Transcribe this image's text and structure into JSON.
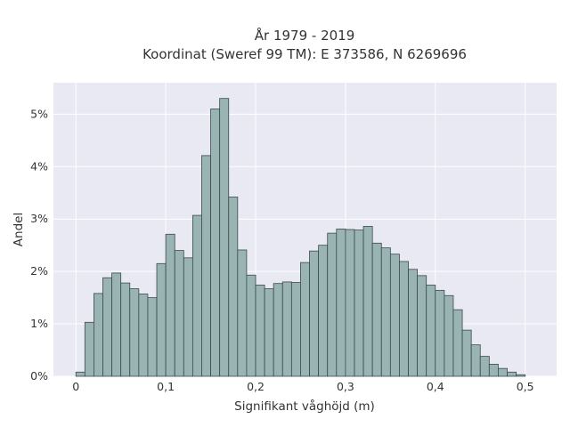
{
  "chart_data": {
    "type": "bar",
    "title_line1": "År 1979 - 2019",
    "title_line2": "Koordinat (Sweref 99 TM): E 373586, N 6269696",
    "xlabel": "Signifikant våghöjd (m)",
    "ylabel": "Andel",
    "bin_width": 0.01,
    "bin_start": 0.0,
    "xlim": [
      -0.025,
      0.535
    ],
    "ylim": [
      0,
      5.6
    ],
    "grid": true,
    "colors": {
      "plot_bg": "#e8e9f2",
      "bar_fill": "#9ab4b4",
      "bar_stroke": "#3a4a4a"
    },
    "x_ticks": [
      {
        "value": 0,
        "label": "0"
      },
      {
        "value": 0.1,
        "label": "0,1"
      },
      {
        "value": 0.2,
        "label": "0,2"
      },
      {
        "value": 0.3,
        "label": "0,3"
      },
      {
        "value": 0.4,
        "label": "0,4"
      },
      {
        "value": 0.5,
        "label": "0,5"
      }
    ],
    "y_ticks": [
      {
        "value": 0,
        "label": "0%"
      },
      {
        "value": 1,
        "label": "1%"
      },
      {
        "value": 2,
        "label": "2%"
      },
      {
        "value": 3,
        "label": "3%"
      },
      {
        "value": 4,
        "label": "4%"
      },
      {
        "value": 5,
        "label": "5%"
      }
    ],
    "values": [
      0.08,
      1.03,
      1.58,
      1.88,
      1.97,
      1.78,
      1.67,
      1.57,
      1.5,
      2.15,
      2.71,
      2.4,
      2.26,
      3.07,
      4.21,
      5.1,
      5.3,
      3.42,
      2.41,
      1.93,
      1.74,
      1.67,
      1.77,
      1.8,
      1.79,
      2.17,
      2.39,
      2.5,
      2.73,
      2.81,
      2.8,
      2.79,
      2.86,
      2.54,
      2.45,
      2.33,
      2.19,
      2.04,
      1.92,
      1.74,
      1.64,
      1.54,
      1.27,
      0.88,
      0.6,
      0.38,
      0.23,
      0.15,
      0.08,
      0.03
    ]
  }
}
